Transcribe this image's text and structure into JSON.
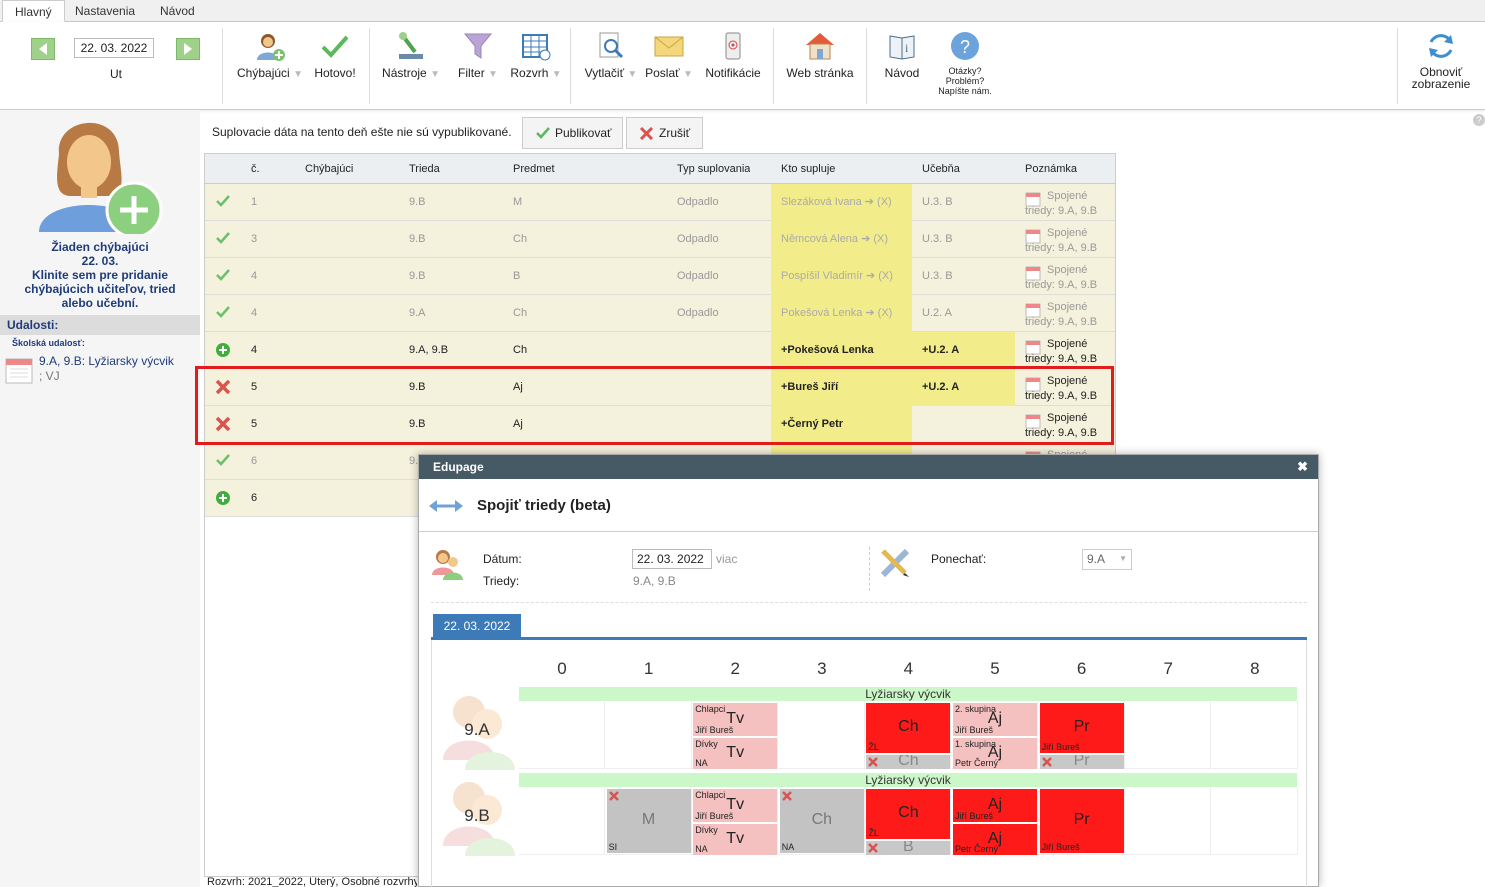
{
  "tabs": [
    "Hlavný",
    "Nastavenia",
    "Návod"
  ],
  "toolbar": {
    "date": "22. 03. 2022",
    "day": "Ut",
    "buttons": {
      "absent": "Chýbajúci",
      "done": "Hotovo!",
      "tools": "Nástroje",
      "filter": "Filter",
      "schedule": "Rozvrh",
      "print": "Vytlačiť",
      "send": "Poslať",
      "notifications": "Notifikácie",
      "website": "Web stránka",
      "manual": "Návod",
      "questions": [
        "Otázky?",
        "Problém?",
        "Napíšte nám."
      ],
      "refresh": [
        "Obnoviť",
        "zobrazenie"
      ]
    }
  },
  "left": {
    "msg": [
      "Žiaden chýbajúci",
      "22. 03.",
      "Klinite sem pre pridanie",
      "chýbajúcich učiteľov, tried",
      "alebo učební."
    ],
    "events_title": "Udalosti:",
    "school_event_label": "Školská udalosť:",
    "event_text": [
      "9.A, 9.B: Lyžiarsky výcvik",
      "; VJ"
    ]
  },
  "main": {
    "notice": "Suplovacie dáta na tento deň ešte nie sú vypublikované.",
    "publish": "Publikovať",
    "cancel": "Zrušiť",
    "headers": [
      "č.",
      "Chýbajúci",
      "Trieda",
      "Predmet",
      "Typ suplovania",
      "Kto supluje",
      "Učebňa",
      "Poznámka"
    ],
    "rows": [
      {
        "status": "check",
        "num": "1",
        "cls": "9.B",
        "subj": "M",
        "type": "Odpadlo",
        "who": "Slezáková Ivana ➔ (X)",
        "room": "U.3. B",
        "note1": "Spojené",
        "note2": "triedy: 9.A, 9.B",
        "muted": true
      },
      {
        "status": "check",
        "num": "3",
        "cls": "9.B",
        "subj": "Ch",
        "type": "Odpadlo",
        "who": "Němcová Alena ➔ (X)",
        "room": "U.3. B",
        "note1": "Spojené",
        "note2": "triedy: 9.A, 9.B",
        "muted": true
      },
      {
        "status": "check",
        "num": "4",
        "cls": "9.B",
        "subj": "B",
        "type": "Odpadlo",
        "who": "Pospíšil Vladimír ➔ (X)",
        "room": "U.3. B",
        "note1": "Spojené",
        "note2": "triedy: 9.A, 9.B",
        "muted": true
      },
      {
        "status": "check",
        "num": "4",
        "cls": "9.A",
        "subj": "Ch",
        "type": "Odpadlo",
        "who": "Pokešová Lenka ➔ (X)",
        "room": "U.2. A",
        "note1": "Spojené",
        "note2": "triedy: 9.A, 9.B",
        "muted": true
      },
      {
        "status": "plus",
        "num": "4",
        "cls": "9.A, 9.B",
        "subj": "Ch",
        "type": "",
        "who": "+Pokešová Lenka",
        "room": "+U.2. A",
        "note1": "Spojené",
        "note2": "triedy: 9.A, 9.B",
        "muted": false
      },
      {
        "status": "x",
        "num": "5",
        "cls": "9.B",
        "subj": "Aj",
        "type": "",
        "who": "+Bureš Jiří",
        "room": "+U.2. A",
        "note1": "Spojené",
        "note2": "triedy: 9.A, 9.B",
        "muted": false
      },
      {
        "status": "x",
        "num": "5",
        "cls": "9.B",
        "subj": "Aj",
        "type": "",
        "who": "+Černý Petr",
        "room": "",
        "note1": "Spojené",
        "note2": "triedy: 9.A, 9.B",
        "muted": false
      },
      {
        "status": "check",
        "num": "6",
        "cls": "9.",
        "subj": "",
        "type": "",
        "who": "",
        "room": "",
        "note1": "Spojené",
        "note2": "",
        "muted": true
      },
      {
        "status": "plus",
        "num": "6",
        "cls": "",
        "subj": "",
        "type": "",
        "who": "",
        "room": "",
        "note1": "",
        "note2": "",
        "muted": false
      }
    ],
    "footer": "Rozvrh: 2021_2022, Úterý, Osobné rozvrhy"
  },
  "modal": {
    "title": "Edupage",
    "heading": "Spojiť triedy (beta)",
    "date_label": "Dátum:",
    "date_value": "22. 03. 2022",
    "more": "viac",
    "classes_label": "Triedy:",
    "classes_value": "9.A, 9.B",
    "keep_label": "Ponechať:",
    "keep_value": "9.A",
    "tab_date": "22. 03. 2022",
    "periods": [
      "0",
      "1",
      "2",
      "3",
      "4",
      "5",
      "6",
      "7",
      "8"
    ],
    "event": "Lyžiarsky výcvik",
    "class_a": "9.A",
    "class_b": "9.B",
    "lessons": {
      "tv": "Tv",
      "chlapci": "Chlapci",
      "divky": "Dívky",
      "bures": "Jiří Bureš",
      "na": "NA",
      "ch": "Ch",
      "zl": "ŽL",
      "aj": "Aj",
      "skup2": "2. skupina",
      "skup1": "1. skupina",
      "cerny": "Petr Černý",
      "pr": "Pr",
      "m": "M",
      "si": "SI",
      "b": "B"
    }
  },
  "colors": {
    "accent": "#3d7ab8",
    "red": "#ff0000",
    "pink": "#f5c0c0",
    "green": "#3fae3f",
    "yellow": "#f2ed8a"
  }
}
